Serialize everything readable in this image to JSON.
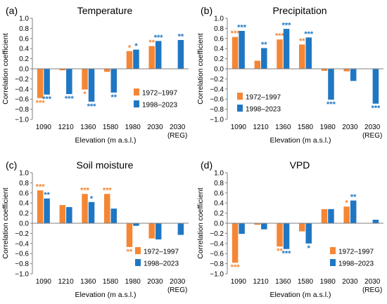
{
  "chart_data": [
    {
      "type": "bar",
      "panel_label": "(a)",
      "title": "Temperature",
      "ylabel": "Correlation coefficient",
      "xlabel": "Elevation (m a.s.l.)",
      "ylim": [
        -1.0,
        1.0
      ],
      "yticks": [
        "1.0",
        "0.8",
        "0.6",
        "0.4",
        "0.2",
        "0.0",
        "−0.2",
        "−0.4",
        "−0.6",
        "−0.8",
        "−1.0"
      ],
      "grid": false,
      "legend_position": "right-middle",
      "categories": [
        "1090",
        "1210",
        "1360",
        "1580",
        "1980",
        "2030",
        "2030"
      ],
      "category_sublabels": [
        "",
        "",
        "",
        "",
        "",
        "",
        "(REG)"
      ],
      "series": [
        {
          "name": "1972–1997",
          "color": "#F58634",
          "values": [
            -0.58,
            -0.03,
            -0.41,
            -0.06,
            0.35,
            0.45,
            null
          ],
          "significance": [
            "***",
            "",
            "*",
            "",
            "*",
            "**",
            ""
          ]
        },
        {
          "name": "1998–2023",
          "color": "#1F77C4",
          "values": [
            -0.51,
            -0.5,
            -0.65,
            -0.47,
            0.38,
            0.55,
            0.57
          ],
          "significance": [
            "***",
            "***",
            "***",
            "**",
            "*",
            "***",
            "**"
          ]
        }
      ]
    },
    {
      "type": "bar",
      "panel_label": "(b)",
      "title": "Precipitation",
      "ylabel": "Correlation coefficient",
      "xlabel": "Elevation (m a.s.l.)",
      "ylim": [
        -1.0,
        1.0
      ],
      "yticks": [
        "1.0",
        "0.8",
        "0.6",
        "0.4",
        "0.2",
        "0.0",
        "−0.2",
        "−0.4",
        "−0.6",
        "−0.8",
        "−1.0"
      ],
      "grid": false,
      "legend_position": "left-bottom",
      "categories": [
        "1090",
        "1210",
        "1360",
        "1580",
        "1980",
        "2030",
        "2030"
      ],
      "category_sublabels": [
        "",
        "",
        "",
        "",
        "",
        "",
        "(REG)"
      ],
      "series": [
        {
          "name": "1972–1997",
          "color": "#F58634",
          "values": [
            0.63,
            0.16,
            0.58,
            0.48,
            -0.04,
            -0.05,
            null
          ],
          "significance": [
            "***",
            "",
            "***",
            "**",
            "",
            "",
            ""
          ]
        },
        {
          "name": "1998–2023",
          "color": "#1F77C4",
          "values": [
            0.75,
            0.41,
            0.79,
            0.62,
            -0.61,
            -0.24,
            -0.69
          ],
          "significance": [
            "***",
            "**",
            "***",
            "***",
            "***",
            "",
            "***"
          ]
        }
      ]
    },
    {
      "type": "bar",
      "panel_label": "(c)",
      "title": "Soil moisture",
      "ylabel": "Correlation coefficient",
      "xlabel": "Elevation (m a.s.l.)",
      "ylim": [
        -1.0,
        1.0
      ],
      "yticks": [
        "1.0",
        "0.8",
        "0.6",
        "0.4",
        "0.2",
        "0.0",
        "−0.2",
        "−0.4",
        "−0.6",
        "−0.8",
        "−1.0"
      ],
      "grid": false,
      "legend_position": "right-bottom",
      "categories": [
        "1090",
        "1210",
        "1360",
        "1580",
        "1980",
        "2030",
        "2030"
      ],
      "category_sublabels": [
        "",
        "",
        "",
        "",
        "",
        "",
        "(REG)"
      ],
      "series": [
        {
          "name": "1972–1997",
          "color": "#F58634",
          "values": [
            0.65,
            0.36,
            0.58,
            0.58,
            -0.47,
            -0.3,
            null
          ],
          "significance": [
            "***",
            "",
            "***",
            "***",
            "**",
            "",
            ""
          ]
        },
        {
          "name": "1998–2023",
          "color": "#1F77C4",
          "values": [
            0.49,
            0.32,
            0.42,
            0.29,
            -0.05,
            -0.32,
            -0.23
          ],
          "significance": [
            "**",
            "",
            "*",
            "",
            "",
            "",
            ""
          ]
        }
      ]
    },
    {
      "type": "bar",
      "panel_label": "(d)",
      "title": "VPD",
      "ylabel": "Correlation coefficient",
      "xlabel": "Elevation (m a.s.l.)",
      "ylim": [
        -1.0,
        1.0
      ],
      "yticks": [
        "1.0",
        "0.8",
        "0.6",
        "0.4",
        "0.2",
        "0.0",
        "−0.2",
        "−0.4",
        "−0.6",
        "−0.8",
        "−1.0"
      ],
      "grid": false,
      "legend_position": "right-bottom",
      "categories": [
        "1090",
        "1210",
        "1360",
        "1580",
        "1980",
        "2030",
        "2030"
      ],
      "category_sublabels": [
        "",
        "",
        "",
        "",
        "",
        "",
        "(REG)"
      ],
      "series": [
        {
          "name": "1972–1997",
          "color": "#F58634",
          "values": [
            -0.78,
            -0.03,
            -0.46,
            -0.16,
            0.28,
            0.33,
            null
          ],
          "significance": [
            "***",
            "",
            "**",
            "",
            "",
            "*",
            ""
          ]
        },
        {
          "name": "1998–2023",
          "color": "#1F77C4",
          "values": [
            -0.21,
            -0.12,
            -0.51,
            -0.4,
            0.28,
            0.45,
            0.07
          ],
          "significance": [
            "",
            "",
            "***",
            "*",
            "",
            "**",
            ""
          ]
        }
      ]
    }
  ]
}
